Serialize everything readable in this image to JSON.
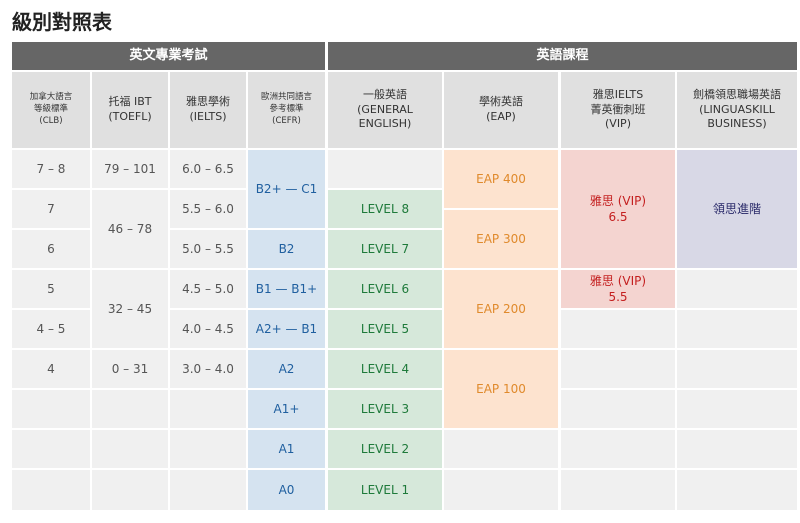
{
  "title": "級別對照表",
  "groups": {
    "english_exams": "英文專業考試",
    "english_courses": "英語課程"
  },
  "headers": {
    "clb": [
      "加拿大語言",
      "等級標準",
      "(CLB)"
    ],
    "toefl": [
      "托福 IBT",
      "(TOEFL)"
    ],
    "ielts": [
      "雅思學術",
      "(IELTS)"
    ],
    "cefr": [
      "歐洲共同語言",
      "參考標準",
      "(CEFR)"
    ],
    "general": [
      "一般英語",
      "(GENERAL",
      "ENGLISH)"
    ],
    "eap": [
      "學術英語",
      "(EAP)"
    ],
    "vip": [
      "雅思IELTS",
      "菁英衝刺班",
      "(VIP)"
    ],
    "linguaskill": [
      "劍橋領思職場英語",
      "(LINGUASKILL",
      "BUSINESS)"
    ]
  },
  "clb": [
    "7 – 8",
    "7",
    "6",
    "5",
    "4 – 5",
    "4"
  ],
  "toefl": [
    "79 – 101",
    "46 – 78",
    "32 – 45",
    "0 – 31"
  ],
  "ielts": [
    "6.0 – 6.5",
    "5.5 – 6.0",
    "5.0 – 5.5",
    "4.5 – 5.0",
    "4.0 – 4.5",
    "3.0 – 4.0"
  ],
  "cefr": [
    "B2+ — C1",
    "B2",
    "B1 — B1+",
    "A2+ — B1",
    "A2",
    "A1+",
    "A1",
    "A0"
  ],
  "general": [
    "LEVEL 8",
    "LEVEL 7",
    "LEVEL 6",
    "LEVEL 5",
    "LEVEL 4",
    "LEVEL 3",
    "LEVEL 2",
    "LEVEL 1"
  ],
  "eap": [
    "EAP 400",
    "EAP 300",
    "EAP 200",
    "EAP 100"
  ],
  "vip": [
    [
      "雅思 (VIP)",
      "6.5"
    ],
    [
      "雅思 (VIP)",
      "5.5"
    ]
  ],
  "linguaskill": [
    "領思進階"
  ],
  "colors": {
    "header": "#666666",
    "col_header": "#e0e0e0",
    "gray": "#f0f0f0",
    "blue_bg": "#d5e3f0",
    "blue_text": "#1f5f9f",
    "green_bg": "#d6e8da",
    "green_text": "#1e7a3a",
    "orange_bg": "#fde3cf",
    "orange_text": "#e08a2c",
    "pink_bg": "#f4d4d0",
    "pink_text": "#c41f1f",
    "purple_bg": "#d8d8e6",
    "purple_text": "#2a2a6a"
  }
}
